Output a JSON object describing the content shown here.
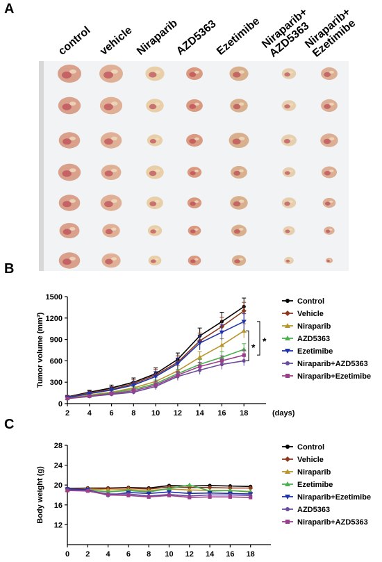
{
  "panels": {
    "a": "A",
    "b": "B",
    "c": "C"
  },
  "photo": {
    "group_labels": [
      "control",
      "vehicle",
      "Niraparib",
      "AZD5363",
      "Ezetimibe",
      "Niraparib+\nAZD5363",
      "Niraparib+\nEzetimibe"
    ],
    "rows": 7
  },
  "chart_data": [
    {
      "type": "line",
      "ylabel": "Tumor volume (mm³)",
      "xlabel": "(days)",
      "x": [
        2,
        4,
        6,
        8,
        10,
        12,
        14,
        16,
        18
      ],
      "xlim": [
        2,
        20
      ],
      "ylim": [
        0,
        1500
      ],
      "yticks": [
        0,
        300,
        600,
        900,
        1200,
        1500
      ],
      "xticks": [
        2,
        4,
        6,
        8,
        10,
        12,
        14,
        16,
        18
      ],
      "grid": false,
      "legend_position": "right",
      "significance_marks": [
        "*",
        "*"
      ],
      "series": [
        {
          "name": "Control",
          "color": "#000000",
          "marker": "circle",
          "values": [
            95,
            160,
            220,
            300,
            420,
            620,
            950,
            1150,
            1360
          ],
          "errors": [
            20,
            30,
            40,
            60,
            80,
            90,
            110,
            130,
            120
          ]
        },
        {
          "name": "Vehicle",
          "color": "#8b3a1e",
          "marker": "diamond",
          "values": [
            90,
            150,
            200,
            280,
            400,
            580,
            880,
            1080,
            1300
          ],
          "errors": [
            20,
            30,
            40,
            60,
            80,
            90,
            110,
            130,
            120
          ]
        },
        {
          "name": "Niraparib",
          "color": "#b8952e",
          "marker": "triangle-up",
          "values": [
            80,
            120,
            160,
            220,
            310,
            460,
            650,
            820,
            1020
          ],
          "errors": [
            15,
            25,
            30,
            40,
            60,
            70,
            80,
            90,
            100
          ]
        },
        {
          "name": "AZD5363",
          "color": "#4caf50",
          "marker": "triangle-up",
          "values": [
            75,
            110,
            150,
            200,
            280,
            420,
            550,
            650,
            760
          ],
          "errors": [
            15,
            20,
            30,
            40,
            50,
            60,
            70,
            80,
            80
          ]
        },
        {
          "name": "Ezetimibe",
          "color": "#2233aa",
          "marker": "triangle-down",
          "values": [
            85,
            140,
            190,
            260,
            380,
            560,
            850,
            1000,
            1150
          ],
          "errors": [
            20,
            25,
            35,
            50,
            70,
            80,
            100,
            110,
            110
          ]
        },
        {
          "name": "Niraparib+AZD5363",
          "color": "#6a4c9c",
          "marker": "circle",
          "values": [
            70,
            100,
            130,
            160,
            240,
            380,
            470,
            550,
            600
          ],
          "errors": [
            15,
            20,
            25,
            30,
            45,
            55,
            60,
            70,
            70
          ]
        },
        {
          "name": "Niraparib+Ezetimibe",
          "color": "#9b3e8c",
          "marker": "square",
          "values": [
            72,
            105,
            140,
            180,
            260,
            400,
            520,
            600,
            680
          ],
          "errors": [
            15,
            20,
            25,
            35,
            45,
            55,
            60,
            70,
            70
          ]
        }
      ]
    },
    {
      "type": "line",
      "ylabel": "Body weight (g)",
      "x": [
        0,
        2,
        4,
        6,
        8,
        10,
        12,
        14,
        16,
        18
      ],
      "xlim": [
        0,
        20
      ],
      "ylim": [
        8,
        28
      ],
      "yticks": [
        12,
        16,
        20,
        24,
        28
      ],
      "xticks": [
        0,
        2,
        4,
        6,
        8,
        10,
        12,
        14,
        16,
        18
      ],
      "grid": false,
      "legend_position": "right",
      "series": [
        {
          "name": "Control",
          "color": "#000000",
          "marker": "circle",
          "values": [
            19.3,
            19.4,
            19.4,
            19.5,
            19.4,
            19.9,
            19.8,
            19.9,
            19.8,
            19.7
          ]
        },
        {
          "name": "Vehicle",
          "color": "#8b3a1e",
          "marker": "diamond",
          "values": [
            19.2,
            19.3,
            19.3,
            19.4,
            19.2,
            19.6,
            19.5,
            19.5,
            19.4,
            19.4
          ]
        },
        {
          "name": "Niraparib",
          "color": "#b8952e",
          "marker": "triangle-up",
          "values": [
            19.1,
            19.2,
            19.0,
            19.1,
            18.9,
            19.2,
            19.0,
            18.9,
            18.9,
            18.7
          ]
        },
        {
          "name": "Ezetimibe",
          "color": "#4caf50",
          "marker": "triangle-up",
          "values": [
            19.0,
            19.0,
            18.6,
            18.9,
            18.6,
            19.3,
            20.0,
            18.8,
            18.9,
            18.6
          ]
        },
        {
          "name": "Niraparib+Ezetimibe",
          "color": "#2233aa",
          "marker": "triangle-down",
          "values": [
            19.2,
            19.1,
            17.9,
            18.5,
            18.3,
            18.6,
            18.3,
            18.4,
            18.3,
            18.2
          ]
        },
        {
          "name": "AZD5363",
          "color": "#6a4c9c",
          "marker": "circle",
          "values": [
            19.0,
            18.9,
            18.2,
            18.2,
            17.8,
            18.1,
            17.8,
            18.0,
            18.0,
            17.9
          ]
        },
        {
          "name": "Niraparib+AZD5363",
          "color": "#9b3e8c",
          "marker": "square",
          "values": [
            18.9,
            18.8,
            18.0,
            17.9,
            17.6,
            17.9,
            17.5,
            17.6,
            17.6,
            17.5
          ]
        }
      ]
    }
  ]
}
